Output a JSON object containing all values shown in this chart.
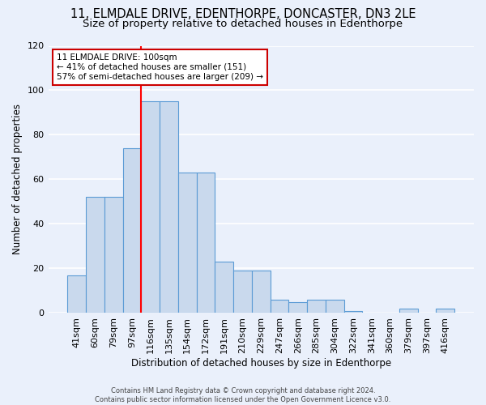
{
  "title1": "11, ELMDALE DRIVE, EDENTHORPE, DONCASTER, DN3 2LE",
  "title2": "Size of property relative to detached houses in Edenthorpe",
  "xlabel": "Distribution of detached houses by size in Edenthorpe",
  "ylabel": "Number of detached properties",
  "categories": [
    "41sqm",
    "60sqm",
    "79sqm",
    "97sqm",
    "116sqm",
    "135sqm",
    "154sqm",
    "172sqm",
    "191sqm",
    "210sqm",
    "229sqm",
    "247sqm",
    "266sqm",
    "285sqm",
    "304sqm",
    "322sqm",
    "341sqm",
    "360sqm",
    "379sqm",
    "397sqm",
    "416sqm"
  ],
  "values": [
    17,
    52,
    52,
    74,
    95,
    95,
    63,
    63,
    23,
    19,
    19,
    6,
    5,
    6,
    6,
    1,
    0,
    0,
    2,
    0,
    2
  ],
  "bar_color": "#c9d9ed",
  "bar_edge_color": "#5b9bd5",
  "red_line_x": 3.5,
  "annotation_text": "11 ELMDALE DRIVE: 100sqm\n← 41% of detached houses are smaller (151)\n57% of semi-detached houses are larger (209) →",
  "annotation_box_color": "#ffffff",
  "annotation_box_edge": "#cc0000",
  "ylim": [
    0,
    120
  ],
  "yticks": [
    0,
    20,
    40,
    60,
    80,
    100,
    120
  ],
  "footnote": "Contains HM Land Registry data © Crown copyright and database right 2024.\nContains public sector information licensed under the Open Government Licence v3.0.",
  "bg_color": "#eaf0fb",
  "grid_color": "#ffffff",
  "title_fontsize": 10.5,
  "subtitle_fontsize": 9.5,
  "bar_width": 1.0,
  "figsize": [
    6.0,
    5.0
  ],
  "dpi": 100
}
